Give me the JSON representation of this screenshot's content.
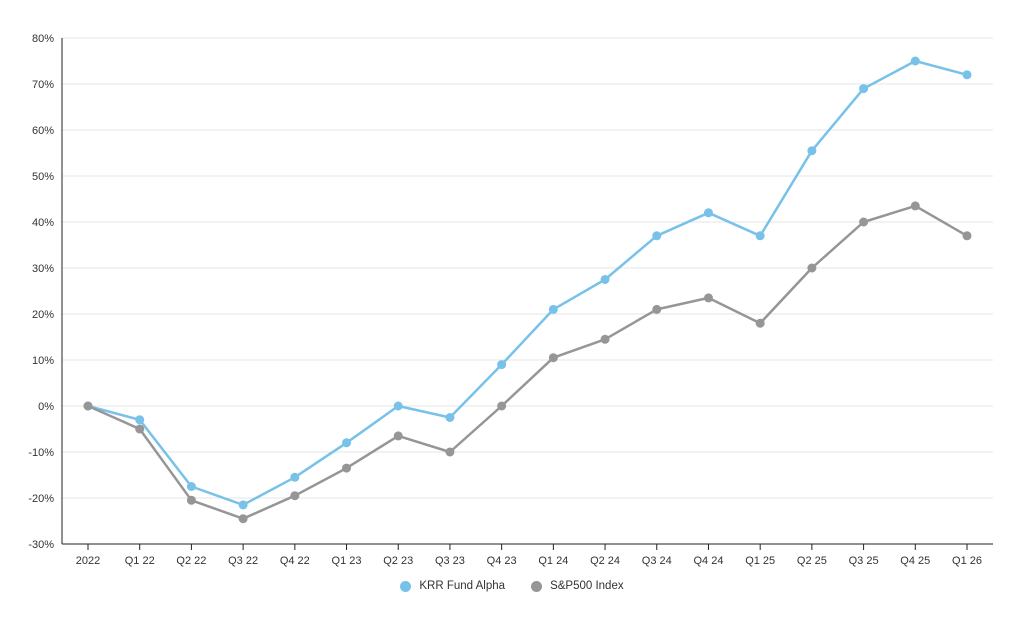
{
  "chart_data": {
    "type": "line",
    "title": "",
    "xlabel": "",
    "ylabel": "",
    "categories": [
      "2022",
      "Q1 22",
      "Q2 22",
      "Q3 22",
      "Q4 22",
      "Q1 23",
      "Q2 23",
      "Q3 23",
      "Q4 23",
      "Q1 24",
      "Q2 24",
      "Q3 24",
      "Q4 24",
      "Q1 25",
      "Q2 25",
      "Q3 25",
      "Q4 25",
      "Q1 26"
    ],
    "series": [
      {
        "name": "KRR Fund Alpha",
        "color": "#78C2E9",
        "values": [
          0,
          -3,
          -17.5,
          -21.5,
          -15.5,
          -8,
          0,
          -2.5,
          9,
          21,
          27.5,
          37,
          42,
          37,
          55.5,
          69,
          75,
          72
        ]
      },
      {
        "name": "S&P500 Index",
        "color": "#969696",
        "values": [
          0,
          -5,
          -20.5,
          -24.5,
          -19.5,
          -13.5,
          -6.5,
          -10,
          0,
          10.5,
          14.5,
          21,
          23.5,
          18,
          30,
          40,
          43.5,
          37
        ]
      }
    ],
    "ylim": [
      -30,
      80
    ],
    "y_tick_step": 10,
    "y_tick_labels": [
      "80%",
      "70%",
      "60%",
      "50%",
      "40%",
      "30%",
      "20%",
      "10%",
      "0%",
      "-10%",
      "-20%",
      "-30%"
    ],
    "grid": true,
    "legend_position": "bottom"
  },
  "style": {
    "grid_color": "#e6e6e6",
    "axis_color": "#222222",
    "label_color": "#333333"
  }
}
